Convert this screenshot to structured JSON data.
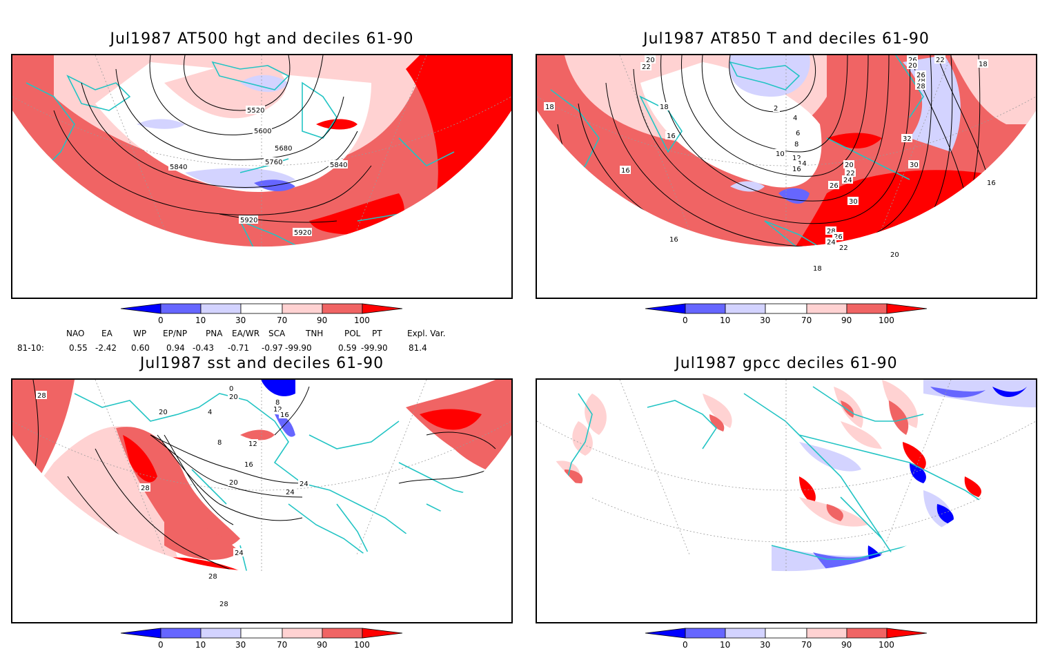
{
  "panels": {
    "hgt": {
      "title": "Jul1987 AT500 hgt and deciles 61-90",
      "contour_labels": [
        "5520",
        "5600",
        "5680",
        "5760",
        "5840",
        "5840",
        "5920",
        "5920"
      ]
    },
    "t850": {
      "title": "Jul1987 AT850 T and deciles 61-90",
      "contour_labels": [
        "20",
        "22",
        "18",
        "16",
        "18",
        "16",
        "2",
        "4",
        "6",
        "8",
        "10",
        "12",
        "14",
        "16",
        "20",
        "22",
        "24",
        "26",
        "30",
        "28",
        "26",
        "24",
        "22",
        "18",
        "20",
        "16",
        "32",
        "30",
        "18",
        "26",
        "28",
        "16",
        "20",
        "22",
        "26",
        "28"
      ]
    },
    "sst": {
      "title": "Jul1987 sst and deciles 61-90",
      "contour_labels": [
        "28",
        "20",
        "28",
        "8",
        "12",
        "16",
        "20",
        "24",
        "24",
        "24",
        "28",
        "28",
        "0",
        "4",
        "8",
        "12",
        "16",
        "20"
      ]
    },
    "gpcc": {
      "title": "Jul1987 gpcc deciles 61-90"
    }
  },
  "colorbar": {
    "ticks": [
      "0",
      "10",
      "30",
      "70",
      "90",
      "100"
    ],
    "colors": [
      "#0000ff",
      "#6666ff",
      "#d3d3ff",
      "#ffffff",
      "#ffd2d2",
      "#f06464",
      "#ff0000"
    ]
  },
  "indices": {
    "headers": [
      "NAO",
      "EA",
      "WP",
      "EP/NP",
      "PNA",
      "EA/WR",
      "SCA",
      "TNH",
      "POL",
      "PT",
      "Expl. Var."
    ],
    "row_label": "81-10:",
    "values": [
      "0.55",
      "-2.42",
      "0.60",
      "0.94",
      "-0.43",
      "-0.71",
      "-0.97",
      "-99.90",
      "0.59",
      "-99.90",
      "81.4"
    ]
  }
}
